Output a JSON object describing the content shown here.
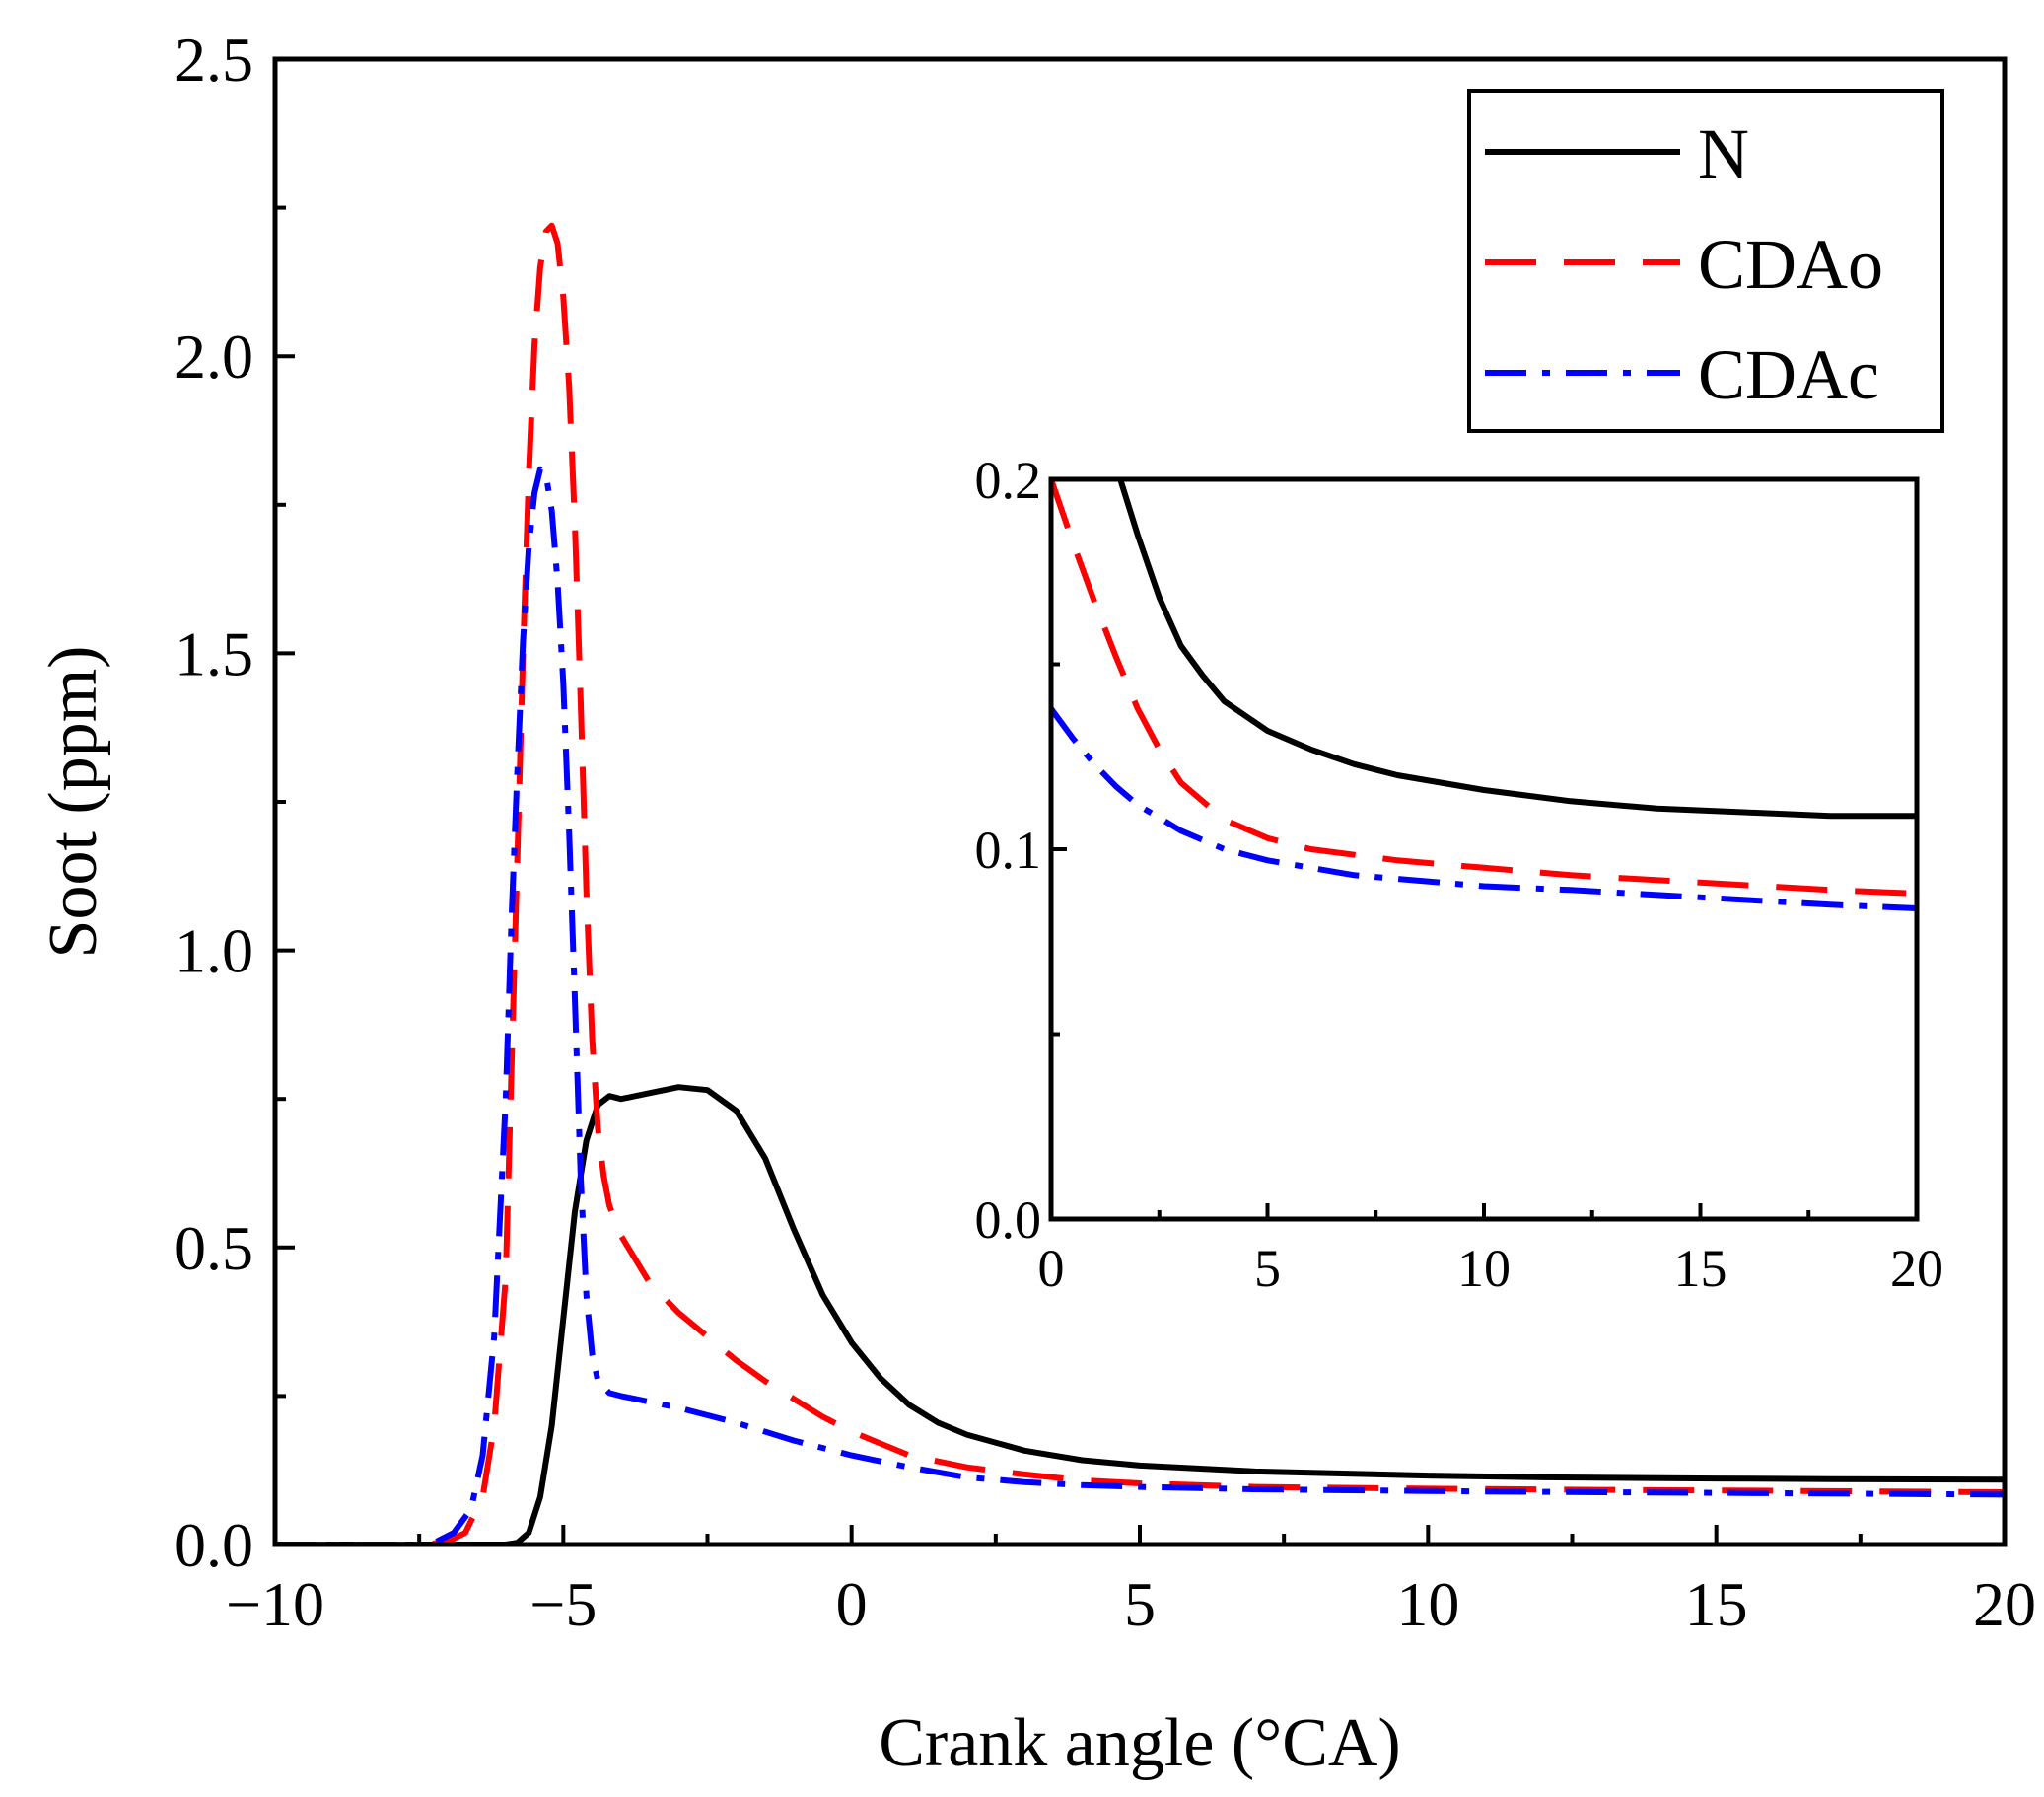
{
  "chart_data": [
    {
      "type": "line",
      "role": "main",
      "title": "",
      "xlabel": "Crank angle (°CA)",
      "ylabel": "Soot (ppm)",
      "xlim": [
        -10,
        20
      ],
      "ylim": [
        0,
        2.5
      ],
      "xticks": [
        -10,
        -5,
        0,
        5,
        10,
        15,
        20
      ],
      "xtick_labels": [
        "−10",
        "−5",
        "0",
        "5",
        "10",
        "15",
        "20"
      ],
      "yticks": [
        0,
        0.5,
        1.0,
        1.5,
        2.0,
        2.5
      ],
      "ytick_labels": [
        "0.0",
        "0.5",
        "1.0",
        "1.5",
        "2.0",
        "2.5"
      ],
      "legend_position": "top-right",
      "series": [
        {
          "name": "N",
          "color": "#000000",
          "dash": "solid",
          "points": [
            [
              -10,
              0
            ],
            [
              -7,
              0
            ],
            [
              -6,
              0
            ],
            [
              -5.8,
              0.003
            ],
            [
              -5.6,
              0.02
            ],
            [
              -5.4,
              0.08
            ],
            [
              -5.2,
              0.2
            ],
            [
              -5.0,
              0.38
            ],
            [
              -4.8,
              0.56
            ],
            [
              -4.6,
              0.68
            ],
            [
              -4.4,
              0.74
            ],
            [
              -4.2,
              0.755
            ],
            [
              -4.0,
              0.75
            ],
            [
              -3.5,
              0.76
            ],
            [
              -3.0,
              0.77
            ],
            [
              -2.5,
              0.765
            ],
            [
              -2.0,
              0.73
            ],
            [
              -1.5,
              0.65
            ],
            [
              -1.0,
              0.53
            ],
            [
              -0.5,
              0.42
            ],
            [
              0,
              0.34
            ],
            [
              0.5,
              0.28
            ],
            [
              1,
              0.235
            ],
            [
              1.5,
              0.205
            ],
            [
              2,
              0.185
            ],
            [
              3,
              0.158
            ],
            [
              4,
              0.142
            ],
            [
              5,
              0.133
            ],
            [
              7,
              0.123
            ],
            [
              10,
              0.116
            ],
            [
              12,
              0.113
            ],
            [
              15,
              0.111
            ],
            [
              17,
              0.11
            ],
            [
              20,
              0.109
            ]
          ]
        },
        {
          "name": "CDAo",
          "color": "#ff0000",
          "dash": "long-dash",
          "points": [
            [
              -10,
              0
            ],
            [
              -7.4,
              0
            ],
            [
              -7.0,
              0.005
            ],
            [
              -6.7,
              0.02
            ],
            [
              -6.4,
              0.08
            ],
            [
              -6.2,
              0.2
            ],
            [
              -6.0,
              0.45
            ],
            [
              -5.9,
              0.8
            ],
            [
              -5.8,
              1.15
            ],
            [
              -5.7,
              1.5
            ],
            [
              -5.6,
              1.8
            ],
            [
              -5.5,
              2.02
            ],
            [
              -5.4,
              2.15
            ],
            [
              -5.3,
              2.21
            ],
            [
              -5.2,
              2.22
            ],
            [
              -5.1,
              2.19
            ],
            [
              -5.0,
              2.1
            ],
            [
              -4.9,
              1.95
            ],
            [
              -4.8,
              1.72
            ],
            [
              -4.7,
              1.42
            ],
            [
              -4.6,
              1.1
            ],
            [
              -4.5,
              0.85
            ],
            [
              -4.4,
              0.7
            ],
            [
              -4.3,
              0.62
            ],
            [
              -4.2,
              0.57
            ],
            [
              -4.0,
              0.52
            ],
            [
              -3.5,
              0.44
            ],
            [
              -3.0,
              0.39
            ],
            [
              -2.5,
              0.35
            ],
            [
              -2.0,
              0.31
            ],
            [
              -1.5,
              0.275
            ],
            [
              -1.0,
              0.245
            ],
            [
              -0.5,
              0.215
            ],
            [
              0,
              0.19
            ],
            [
              1,
              0.15
            ],
            [
              2,
              0.13
            ],
            [
              3,
              0.118
            ],
            [
              4,
              0.108
            ],
            [
              5,
              0.103
            ],
            [
              7,
              0.097
            ],
            [
              10,
              0.094
            ],
            [
              13,
              0.092
            ],
            [
              15,
              0.091
            ],
            [
              20,
              0.088
            ]
          ]
        },
        {
          "name": "CDAc",
          "color": "#0000ff",
          "dash": "dash-dot",
          "points": [
            [
              -10,
              0
            ],
            [
              -7.5,
              0
            ],
            [
              -7.2,
              0.005
            ],
            [
              -6.9,
              0.02
            ],
            [
              -6.6,
              0.06
            ],
            [
              -6.4,
              0.15
            ],
            [
              -6.2,
              0.35
            ],
            [
              -6.0,
              0.75
            ],
            [
              -5.9,
              1.05
            ],
            [
              -5.8,
              1.3
            ],
            [
              -5.7,
              1.52
            ],
            [
              -5.6,
              1.68
            ],
            [
              -5.5,
              1.77
            ],
            [
              -5.4,
              1.81
            ],
            [
              -5.3,
              1.8
            ],
            [
              -5.2,
              1.74
            ],
            [
              -5.1,
              1.62
            ],
            [
              -5.0,
              1.45
            ],
            [
              -4.9,
              1.2
            ],
            [
              -4.8,
              0.92
            ],
            [
              -4.7,
              0.62
            ],
            [
              -4.6,
              0.42
            ],
            [
              -4.5,
              0.32
            ],
            [
              -4.4,
              0.275
            ],
            [
              -4.2,
              0.255
            ],
            [
              -4.0,
              0.25
            ],
            [
              -3.0,
              0.23
            ],
            [
              -2.0,
              0.205
            ],
            [
              -1.0,
              0.175
            ],
            [
              0,
              0.15
            ],
            [
              1,
              0.13
            ],
            [
              2,
              0.113
            ],
            [
              3,
              0.105
            ],
            [
              4,
              0.1
            ],
            [
              5,
              0.097
            ],
            [
              7,
              0.093
            ],
            [
              10,
              0.09
            ],
            [
              13,
              0.088
            ],
            [
              15,
              0.087
            ],
            [
              20,
              0.084
            ]
          ]
        }
      ]
    },
    {
      "type": "line",
      "role": "inset",
      "xlim": [
        0,
        20
      ],
      "ylim": [
        0,
        0.2
      ],
      "xticks": [
        0,
        5,
        10,
        15,
        20
      ],
      "xtick_labels": [
        "0",
        "5",
        "10",
        "15",
        "20"
      ],
      "yticks": [
        0,
        0.1,
        0.2
      ],
      "ytick_labels": [
        "0.0",
        "0.1",
        "0.2"
      ],
      "series": [
        {
          "name": "N",
          "color": "#000000",
          "dash": "solid",
          "points": [
            [
              1.6,
              0.2
            ],
            [
              2,
              0.185
            ],
            [
              2.5,
              0.168
            ],
            [
              3,
              0.155
            ],
            [
              3.5,
              0.147
            ],
            [
              4,
              0.14
            ],
            [
              5,
              0.132
            ],
            [
              6,
              0.127
            ],
            [
              7,
              0.123
            ],
            [
              8,
              0.12
            ],
            [
              10,
              0.116
            ],
            [
              12,
              0.113
            ],
            [
              14,
              0.111
            ],
            [
              16,
              0.11
            ],
            [
              18,
              0.109
            ],
            [
              20,
              0.109
            ]
          ]
        },
        {
          "name": "CDAo",
          "color": "#ff0000",
          "dash": "long-dash",
          "points": [
            [
              0,
              0.2
            ],
            [
              0.5,
              0.183
            ],
            [
              1,
              0.167
            ],
            [
              1.5,
              0.152
            ],
            [
              2,
              0.138
            ],
            [
              2.5,
              0.127
            ],
            [
              3,
              0.118
            ],
            [
              4,
              0.108
            ],
            [
              5,
              0.103
            ],
            [
              6,
              0.1
            ],
            [
              8,
              0.097
            ],
            [
              10,
              0.095
            ],
            [
              12,
              0.093
            ],
            [
              15,
              0.091
            ],
            [
              18,
              0.089
            ],
            [
              20,
              0.088
            ]
          ]
        },
        {
          "name": "CDAc",
          "color": "#0000ff",
          "dash": "dash-dot",
          "points": [
            [
              0,
              0.138
            ],
            [
              0.5,
              0.13
            ],
            [
              1,
              0.123
            ],
            [
              1.5,
              0.117
            ],
            [
              2,
              0.112
            ],
            [
              3,
              0.105
            ],
            [
              4,
              0.1
            ],
            [
              5,
              0.097
            ],
            [
              7,
              0.093
            ],
            [
              10,
              0.09
            ],
            [
              12,
              0.089
            ],
            [
              15,
              0.087
            ],
            [
              18,
              0.085
            ],
            [
              20,
              0.084
            ]
          ]
        }
      ]
    }
  ]
}
